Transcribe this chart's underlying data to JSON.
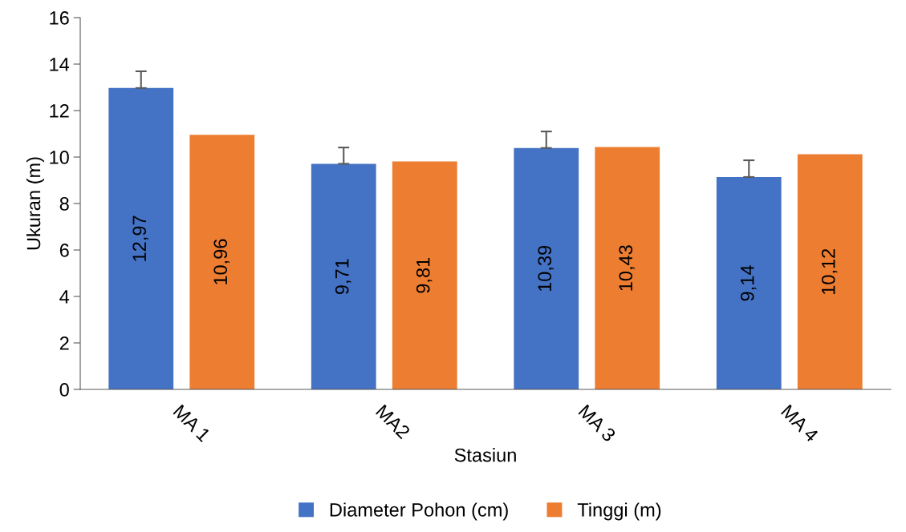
{
  "chart_data": {
    "type": "bar",
    "xlabel": "Stasiun",
    "ylabel": "Ukuran (m)",
    "categories": [
      "MA 1",
      "MA2",
      "MA 3",
      "MA 4"
    ],
    "series": [
      {
        "name": "Diameter Pohon (cm)",
        "color": "#4472c4",
        "values": [
          12.97,
          9.71,
          10.39,
          9.14
        ],
        "value_labels": [
          "12,97",
          "9,71",
          "10,39",
          "9,14"
        ],
        "errors": [
          [
            12.97,
            13.69
          ],
          [
            9.71,
            10.41
          ],
          [
            10.39,
            11.1
          ],
          [
            9.14,
            9.86
          ]
        ]
      },
      {
        "name": "Tinggi (m)",
        "color": "#ed7d31",
        "values": [
          10.96,
          9.81,
          10.43,
          10.12
        ],
        "value_labels": [
          "10,96",
          "9,81",
          "10,43",
          "10,12"
        ]
      }
    ],
    "ylim": [
      0,
      16
    ],
    "yticks": [
      0,
      2,
      4,
      6,
      8,
      10,
      12,
      14,
      16
    ],
    "grid": false,
    "legend": "bottom"
  }
}
